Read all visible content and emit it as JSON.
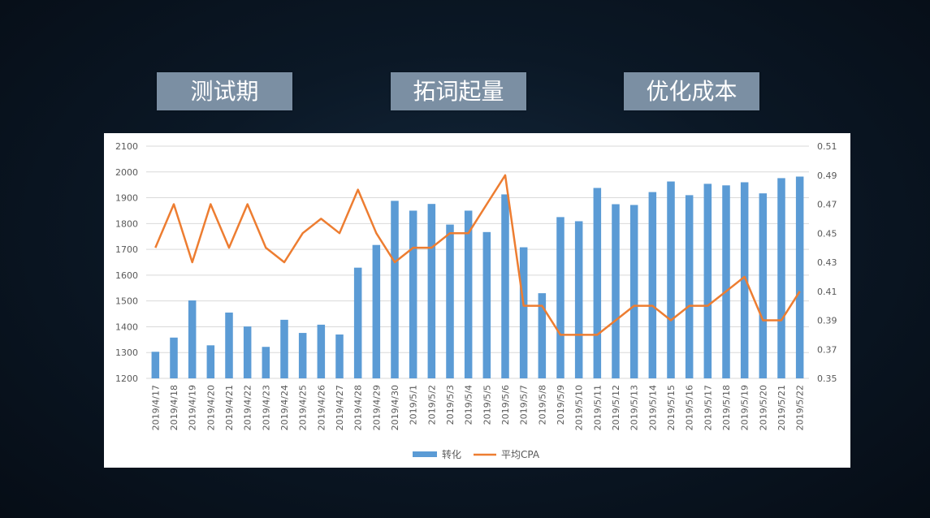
{
  "phases": [
    "测试期",
    "拓词起量",
    "优化成本"
  ],
  "colors": {
    "bar": "#5b9bd5",
    "line": "#ed7d31",
    "grid": "#d9d9d9",
    "text": "#595959"
  },
  "chart_data": {
    "type": "bar",
    "categories": [
      "2019/4/17",
      "2019/4/18",
      "2019/4/19",
      "2019/4/20",
      "2019/4/21",
      "2019/4/22",
      "2019/4/23",
      "2019/4/24",
      "2019/4/25",
      "2019/4/26",
      "2019/4/27",
      "2019/4/28",
      "2019/4/29",
      "2019/4/30",
      "2019/5/1",
      "2019/5/2",
      "2019/5/3",
      "2019/5/4",
      "2019/5/5",
      "2019/5/6",
      "2019/5/7",
      "2019/5/8",
      "2019/5/9",
      "2019/5/10",
      "2019/5/11",
      "2019/5/12",
      "2019/5/13",
      "2019/5/14",
      "2019/5/15",
      "2019/5/16",
      "2019/5/17",
      "2019/5/18",
      "2019/5/19",
      "2019/5/20",
      "2019/5/21",
      "2019/5/22"
    ],
    "series": [
      {
        "name": "转化",
        "type": "bar",
        "axis": "left",
        "values": [
          1303,
          1358,
          1502,
          1328,
          1455,
          1401,
          1322,
          1427,
          1376,
          1408,
          1370,
          1629,
          1717,
          1888,
          1850,
          1876,
          1796,
          1850,
          1767,
          1913,
          1708,
          1530,
          1825,
          1809,
          1938,
          1875,
          1872,
          1922,
          1963,
          1910,
          1954,
          1948,
          1960,
          1917,
          1976,
          1982
        ]
      },
      {
        "name": "平均CPA",
        "type": "line",
        "axis": "right",
        "values": [
          0.44,
          0.47,
          0.43,
          0.47,
          0.44,
          0.47,
          0.44,
          0.43,
          0.45,
          0.46,
          0.45,
          0.48,
          0.45,
          0.43,
          0.44,
          0.44,
          0.45,
          0.45,
          0.47,
          0.49,
          0.4,
          0.4,
          0.38,
          0.38,
          0.38,
          0.39,
          0.4,
          0.4,
          0.39,
          0.4,
          0.4,
          0.41,
          0.42,
          0.39,
          0.39,
          0.41
        ]
      }
    ],
    "ylim_left": [
      1200,
      2100
    ],
    "yticks_left": [
      "1200",
      "1300",
      "1400",
      "1500",
      "1600",
      "1700",
      "1800",
      "1900",
      "2000",
      "2100"
    ],
    "ylim_right": [
      0.35,
      0.51
    ],
    "yticks_right": [
      "0.35",
      "0.37",
      "0.39",
      "0.41",
      "0.43",
      "0.45",
      "0.47",
      "0.49",
      "0.51"
    ],
    "grid": true,
    "legend_position": "bottom-center"
  }
}
